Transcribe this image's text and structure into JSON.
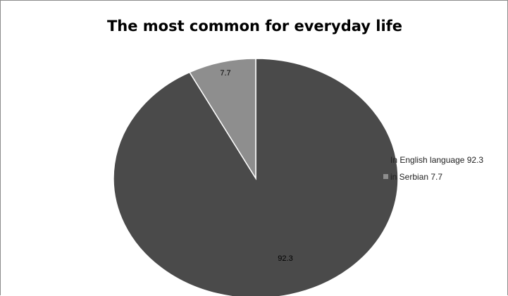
{
  "chart_data": {
    "type": "pie",
    "title": "The most common for everyday life",
    "slices": [
      {
        "label": "In English language 92.3",
        "value": 92.3,
        "data_label": "92.3",
        "color": "#4a4a4a"
      },
      {
        "label": "in Serbian 7.7",
        "value": 7.7,
        "data_label": "7.7",
        "color": "#8e8e8e"
      }
    ],
    "legend_position": "right"
  }
}
